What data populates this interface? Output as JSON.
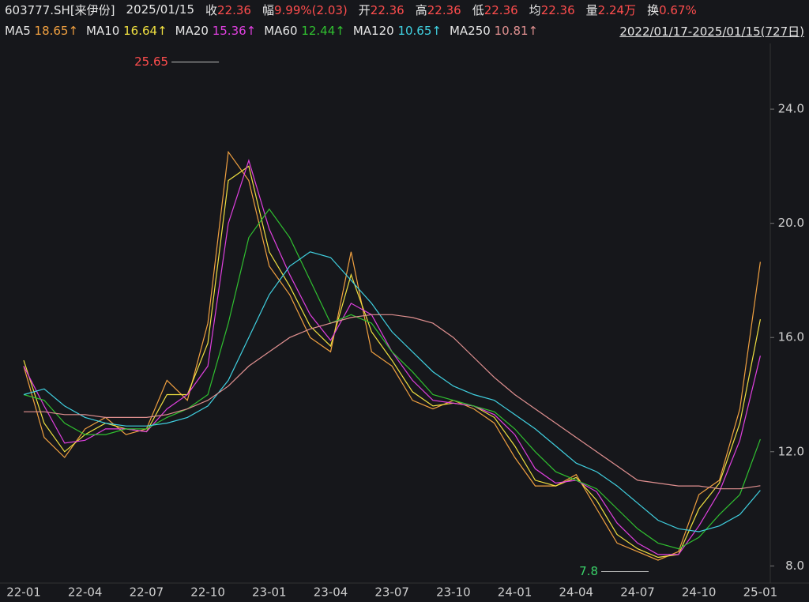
{
  "header": {
    "items": [
      {
        "label": "603777.SH[来伊份]"
      },
      {
        "label": "2025/01/15"
      },
      {
        "label": "收",
        "value": "22.36"
      },
      {
        "label": "幅",
        "value": "9.99%(2.03)"
      },
      {
        "label": "开",
        "value": "22.36"
      },
      {
        "label": "高",
        "value": "22.36"
      },
      {
        "label": "低",
        "value": "22.36"
      },
      {
        "label": "均",
        "value": "22.36"
      },
      {
        "label": "量",
        "value": "2.24万"
      },
      {
        "label": "换",
        "value": "0.67%"
      }
    ],
    "range": "2022/01/17-2025/01/15(727日)"
  },
  "chart_data": {
    "type": "line",
    "categories": [
      "22-01",
      null,
      null,
      "22-04",
      null,
      null,
      "22-07",
      null,
      null,
      "22-10",
      null,
      null,
      "23-01",
      null,
      null,
      "23-04",
      null,
      null,
      "23-07",
      null,
      null,
      "23-10",
      null,
      null,
      "24-01",
      null,
      null,
      "24-04",
      null,
      null,
      "24-07",
      null,
      null,
      "24-10",
      null,
      null,
      "25-01"
    ],
    "ylim": [
      7.4,
      26.3
    ],
    "yticks": [
      {
        "value": 8,
        "label": "8.0"
      },
      {
        "value": 12,
        "label": "12.0"
      },
      {
        "value": 16,
        "label": "16.0"
      },
      {
        "value": 20,
        "label": "20.0"
      },
      {
        "value": 24,
        "label": "24.0"
      }
    ],
    "series": [
      {
        "name": "MA5",
        "legend_label": "18.65↑",
        "color": "#f0a040",
        "values": [
          15.0,
          12.5,
          11.8,
          12.8,
          13.2,
          12.6,
          12.8,
          14.5,
          13.8,
          16.5,
          22.5,
          21.5,
          18.5,
          17.5,
          16.0,
          15.5,
          19.0,
          15.5,
          15.0,
          13.8,
          13.5,
          13.8,
          13.5,
          13.0,
          11.8,
          10.8,
          10.8,
          11.2,
          10.0,
          8.8,
          8.5,
          8.2,
          8.5,
          10.5,
          11.0,
          13.5,
          18.65
        ]
      },
      {
        "name": "MA10",
        "legend_label": "16.64↑",
        "color": "#f0e040",
        "values": [
          15.2,
          13.0,
          12.0,
          12.6,
          13.0,
          12.8,
          12.7,
          14.0,
          14.0,
          15.8,
          21.5,
          22.0,
          19.0,
          17.8,
          16.4,
          15.7,
          18.2,
          16.2,
          15.2,
          14.1,
          13.6,
          13.7,
          13.6,
          13.2,
          12.2,
          11.0,
          10.8,
          11.1,
          10.3,
          9.1,
          8.6,
          8.3,
          8.4,
          10.0,
          10.9,
          13.0,
          16.64
        ]
      },
      {
        "name": "MA20",
        "legend_label": "15.36↑",
        "color": "#e040e0",
        "values": [
          15.0,
          13.6,
          12.3,
          12.4,
          12.8,
          12.8,
          12.7,
          13.5,
          14.0,
          15.0,
          20.0,
          22.2,
          19.8,
          18.2,
          16.8,
          15.9,
          17.2,
          16.8,
          15.5,
          14.5,
          13.8,
          13.7,
          13.6,
          13.3,
          12.6,
          11.4,
          10.9,
          11.0,
          10.6,
          9.5,
          8.8,
          8.4,
          8.4,
          9.4,
          10.6,
          12.4,
          15.36
        ]
      },
      {
        "name": "MA60",
        "legend_label": "12.44↑",
        "color": "#30c030",
        "values": [
          14.0,
          13.8,
          13.0,
          12.6,
          12.6,
          12.8,
          12.8,
          13.2,
          13.5,
          14.0,
          16.5,
          19.5,
          20.5,
          19.5,
          18.0,
          16.5,
          16.8,
          16.5,
          15.5,
          14.8,
          14.0,
          13.8,
          13.6,
          13.4,
          12.8,
          12.0,
          11.3,
          11.0,
          10.7,
          10.0,
          9.3,
          8.8,
          8.6,
          9.0,
          9.8,
          10.5,
          12.44
        ]
      },
      {
        "name": "MA120",
        "legend_label": "10.65↑",
        "color": "#40d0e0",
        "values": [
          14.0,
          14.2,
          13.6,
          13.2,
          13.0,
          12.9,
          12.9,
          13.0,
          13.2,
          13.6,
          14.5,
          16.0,
          17.5,
          18.5,
          19.0,
          18.8,
          18.0,
          17.2,
          16.2,
          15.5,
          14.8,
          14.3,
          14.0,
          13.8,
          13.3,
          12.8,
          12.2,
          11.6,
          11.3,
          10.8,
          10.2,
          9.6,
          9.3,
          9.2,
          9.4,
          9.8,
          10.65
        ]
      },
      {
        "name": "MA250",
        "legend_label": "10.81↑",
        "color": "#e09090",
        "values": [
          13.4,
          13.4,
          13.3,
          13.3,
          13.2,
          13.2,
          13.2,
          13.3,
          13.5,
          13.8,
          14.3,
          15.0,
          15.5,
          16.0,
          16.3,
          16.5,
          16.7,
          16.8,
          16.8,
          16.7,
          16.5,
          16.0,
          15.3,
          14.6,
          14.0,
          13.5,
          13.0,
          12.5,
          12.0,
          11.5,
          11.0,
          10.9,
          10.8,
          10.8,
          10.7,
          10.7,
          10.81
        ]
      }
    ],
    "annotations": [
      {
        "text": 25.65,
        "x": "22-10",
        "kind": "high"
      },
      {
        "text": 7.8,
        "x": "24-07",
        "kind": "low"
      }
    ]
  }
}
